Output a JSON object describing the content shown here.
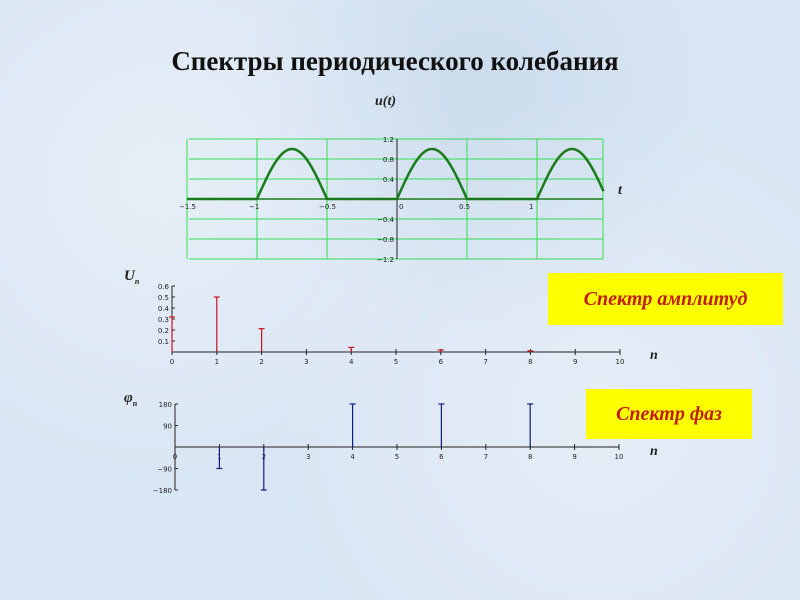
{
  "title": "Спектры периодического колебания",
  "labels": {
    "signal_y": "u(t)",
    "signal_x": "t",
    "amp_y": "U",
    "amp_y_sub": "n",
    "amp_x": "n",
    "phase_y": "φ",
    "phase_y_sub": "n",
    "phase_x": "n"
  },
  "boxes": {
    "amplitude": "Спектр амплитуд",
    "phase": "Спектр фаз"
  },
  "colors": {
    "signal": "#1a7a1a",
    "grid": "#33dd55",
    "amplitude": "#cc1122",
    "phase": "#101c80",
    "box": "#ffff00",
    "box_text": "#c0200a"
  },
  "chart_data": [
    {
      "type": "line",
      "xlabel": "t",
      "ylabel": "u(t)",
      "xlim": [
        -1.5,
        1.5
      ],
      "ylim": [
        -1.2,
        1.2
      ],
      "grid": true,
      "function": "half-wave rectified sine, period 1, amplitude 1",
      "xticks": [
        "−1.5",
        "−1",
        "−0.5",
        "0",
        "0.5",
        "1"
      ],
      "yticks": [
        "1.2",
        "0.8",
        "0.4",
        "−0.4",
        "−0.8",
        "−1.2"
      ],
      "xtick_values": [
        -1.5,
        -1,
        -0.5,
        0,
        0.5,
        1
      ],
      "ytick_values": [
        1.2,
        0.8,
        0.4,
        -0.4,
        -0.8,
        -1.2
      ]
    },
    {
      "type": "bar",
      "xlabel": "n",
      "ylabel": "Un",
      "xlim": [
        0,
        10
      ],
      "ylim": [
        0,
        0.6
      ],
      "grid": false,
      "x": [
        0,
        1,
        2,
        4,
        6,
        8
      ],
      "values": [
        0.318,
        0.5,
        0.212,
        0.042,
        0.018,
        0.01
      ],
      "xticks": [
        "0",
        "1",
        "2",
        "3",
        "4",
        "5",
        "6",
        "7",
        "8",
        "9",
        "10"
      ],
      "yticks": [
        "0.6",
        "0.5",
        "0.4",
        "0.3",
        "0.2",
        "0.1"
      ],
      "ytick_values": [
        0.6,
        0.5,
        0.4,
        0.3,
        0.2,
        0.1
      ]
    },
    {
      "type": "bar",
      "xlabel": "n",
      "ylabel": "φn",
      "xlim": [
        0,
        10
      ],
      "ylim": [
        -180,
        180
      ],
      "grid": false,
      "x": [
        1,
        2,
        4,
        6,
        8
      ],
      "values": [
        -90,
        -180,
        180,
        180,
        180
      ],
      "xticks": [
        "0",
        "1",
        "2",
        "3",
        "4",
        "5",
        "6",
        "7",
        "8",
        "9",
        "10"
      ],
      "yticks": [
        "180",
        "90",
        "−90",
        "−180"
      ],
      "ytick_values": [
        180,
        90,
        -90,
        -180
      ]
    }
  ]
}
